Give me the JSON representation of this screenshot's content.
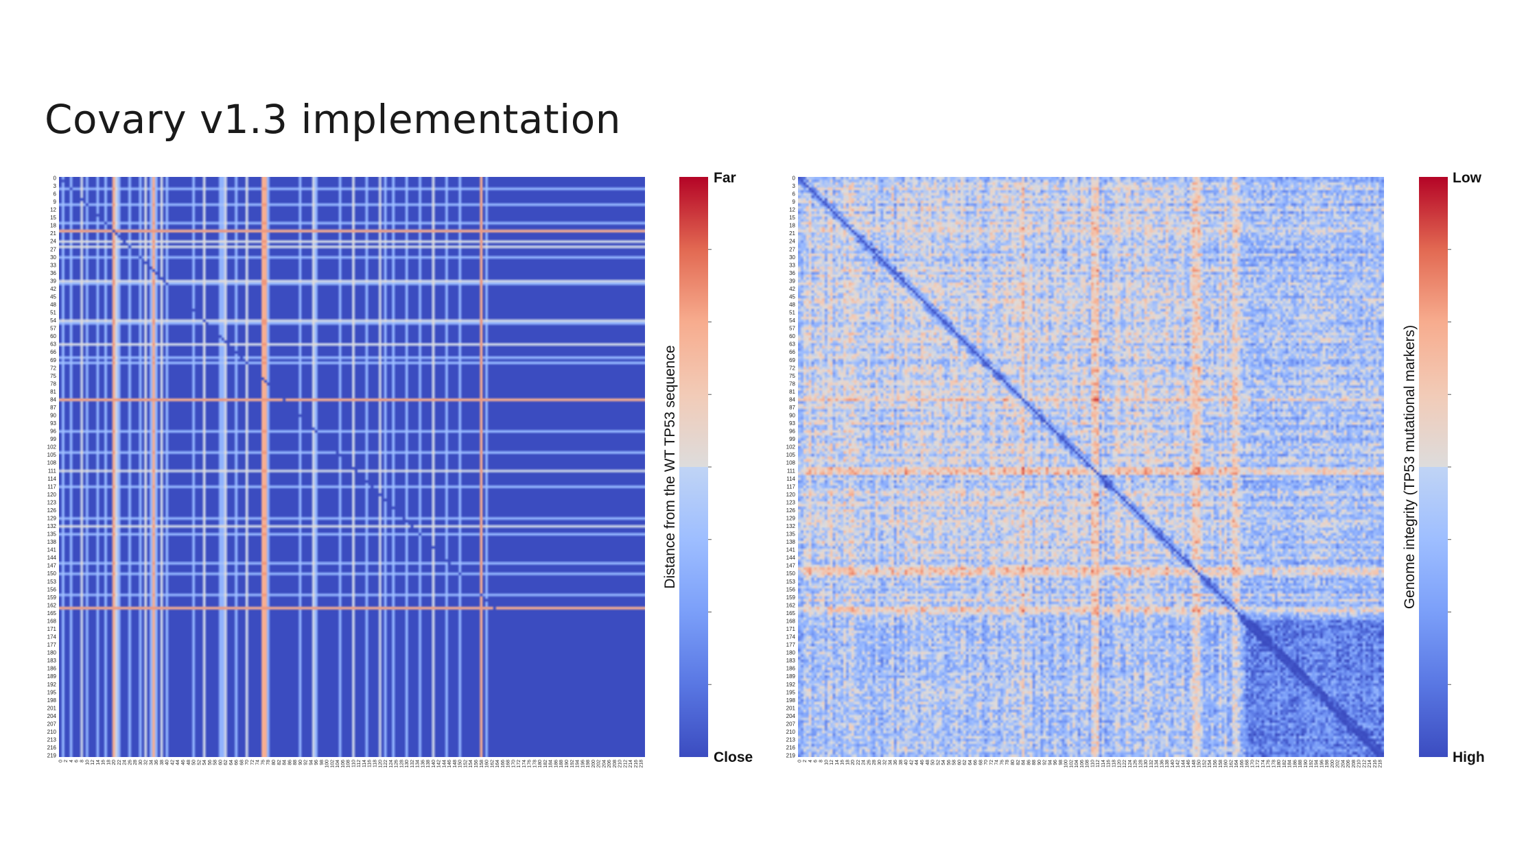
{
  "slide": {
    "title": "Covary v1.3 implementation"
  },
  "colors": {
    "low": "#3b4cc0",
    "mid": "#dddcdc",
    "high": "#b40426"
  },
  "chart_data": [
    {
      "type": "heatmap",
      "name": "WT TP53 distance heatmap",
      "rows": 220,
      "cols": 220,
      "row_ticks_step": 3,
      "col_ticks_step": 2,
      "tick_range": [
        0,
        219
      ],
      "colorbar": {
        "label": "Distance from the WT TP53  sequence",
        "top_label": "Far",
        "bottom_label": "Close",
        "scale": "coolwarm"
      },
      "grid": false
    },
    {
      "type": "heatmap",
      "name": "TP53 mutational markers heatmap",
      "rows": 220,
      "cols": 220,
      "row_ticks_step": 3,
      "col_ticks_step": 2,
      "tick_range": [
        0,
        219
      ],
      "colorbar": {
        "label": "Genome integrity  (TP53 mutational markers)",
        "top_label": "Low",
        "bottom_label": "High",
        "scale": "coolwarm"
      },
      "grid": false
    }
  ]
}
